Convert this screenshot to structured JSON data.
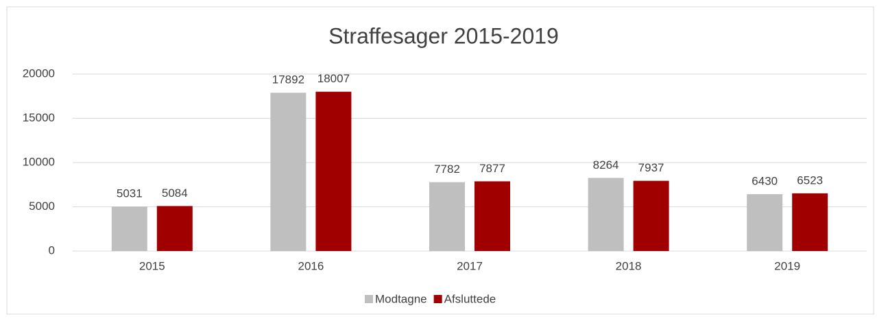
{
  "chart_data": {
    "type": "bar",
    "title": "Straffesager 2015-2019",
    "categories": [
      "2015",
      "2016",
      "2017",
      "2018",
      "2019"
    ],
    "series": [
      {
        "name": "Modtagne",
        "color": "#bfbfbf",
        "values": [
          5031,
          17892,
          7782,
          8264,
          6430
        ]
      },
      {
        "name": "Afsluttede",
        "color": "#a00000",
        "values": [
          5084,
          18007,
          7877,
          7937,
          6523
        ]
      }
    ],
    "ylim": [
      0,
      20000
    ],
    "yticks": [
      0,
      5000,
      10000,
      15000,
      20000
    ],
    "grid": true,
    "legend": "bottom"
  }
}
